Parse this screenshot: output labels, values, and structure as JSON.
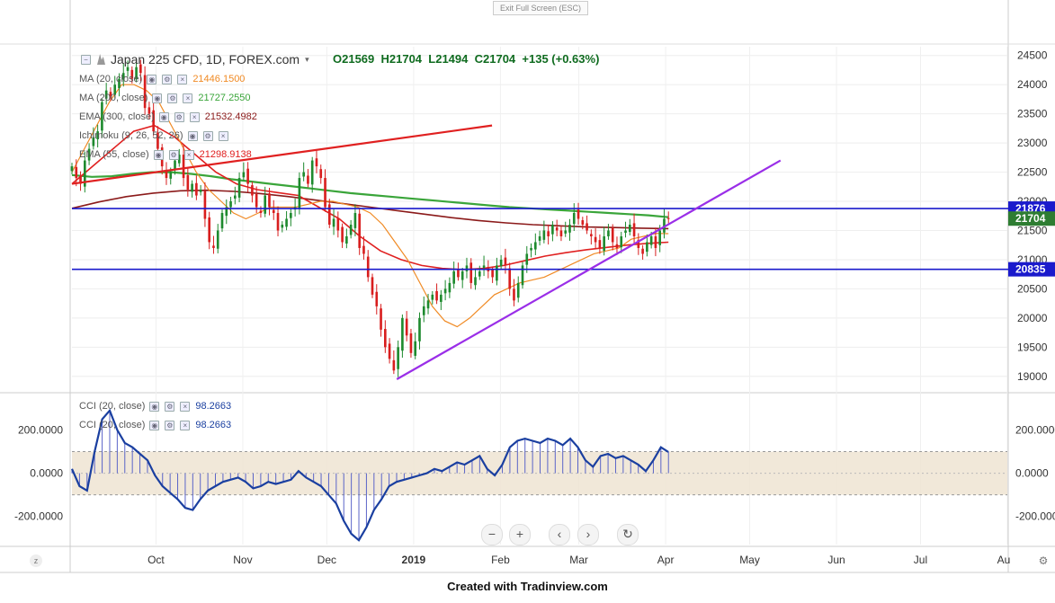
{
  "window": {
    "exit_fullscreen": "Exit Full Screen (ESC)"
  },
  "symbol": {
    "title": "Japan 225 CFD, 1D, FOREX.com"
  },
  "ohlc": {
    "open": "O21569",
    "high": "H21704",
    "low": "L21494",
    "close": "C21704",
    "change": "+135 (+0.63%)"
  },
  "indicators": [
    {
      "label": "MA (20, close)",
      "value": "21446.1500",
      "color": "#f08a24"
    },
    {
      "label": "MA (200, close)",
      "value": "21727.2550",
      "color": "#3aa53a"
    },
    {
      "label": "EMA (300, close)",
      "value": "21532.4982",
      "color": "#8b1a1a"
    },
    {
      "label": "Ichimoku (9, 26, 52, 26)",
      "value": "",
      "color": "#888888"
    },
    {
      "label": "EMA (55, close)",
      "value": "21298.9138",
      "color": "#e02020"
    }
  ],
  "cci_legend": [
    {
      "label": "CCI (20, close)",
      "value": "98.2663"
    },
    {
      "label": "CCI (20, close)",
      "value": "98.2663"
    }
  ],
  "price_axis": [
    "24500",
    "24000",
    "23500",
    "23000",
    "22500",
    "22000",
    "21500",
    "21000",
    "20500",
    "20000",
    "19500",
    "19000"
  ],
  "cci_axis": [
    "200.0000",
    "0.0000",
    "-200.0000"
  ],
  "time_axis": [
    "Oct",
    "Nov",
    "Dec",
    "2019",
    "Feb",
    "Mar",
    "Apr",
    "May",
    "Jun",
    "Jul",
    "Au"
  ],
  "price_markers": [
    {
      "value": "21876",
      "color": "#1a1acc"
    },
    {
      "value": "21704",
      "color": "#2e7d32"
    },
    {
      "value": "20835",
      "color": "#1a1acc"
    }
  ],
  "toolbar": {
    "zoom_out": "−",
    "zoom_in": "+",
    "prev": "‹",
    "next": "›",
    "reset": "↻"
  },
  "footer": {
    "credit": "Created with Tradinview.com"
  },
  "colors": {
    "support_resistance": "#1a1acc",
    "trendline": "#9a2ee8",
    "red_trendline": "#e02020",
    "cci_line": "#1a3fa0",
    "cci_band": "#eee4d2"
  },
  "chart_data": {
    "type": "candlestick",
    "title": "Japan 225 CFD, 1D, FOREX.com",
    "x_range": [
      "2018-09-01",
      "2019-08-01"
    ],
    "ylim": [
      18750,
      24650
    ],
    "cci_ylim": [
      -330,
      360
    ],
    "horizontal_lines": [
      21876,
      20835
    ],
    "trendlines": [
      {
        "name": "rising support",
        "color": "#9a2ee8",
        "from": [
          "2018-12-26",
          18950
        ],
        "to": [
          "2019-05-12",
          22700
        ]
      },
      {
        "name": "upper red line",
        "color": "#e02020",
        "from": [
          "2018-09-01",
          22300
        ],
        "to": [
          "2019-01-29",
          23300
        ]
      }
    ],
    "closes": [
      22600,
      22400,
      22300,
      22700,
      22900,
      23100,
      23200,
      23700,
      23900,
      23800,
      24000,
      24100,
      24200,
      24300,
      24100,
      24300,
      24200,
      23600,
      23500,
      23200,
      22900,
      22600,
      22400,
      22500,
      22700,
      22800,
      22400,
      22200,
      22300,
      22100,
      22200,
      21700,
      21300,
      21200,
      21500,
      21800,
      21900,
      22000,
      22100,
      22400,
      22500,
      22300,
      22100,
      21900,
      21800,
      22100,
      21900,
      21800,
      21500,
      21600,
      21700,
      21800,
      21900,
      22400,
      22500,
      22300,
      22700,
      22600,
      22400,
      21900,
      21600,
      21700,
      21500,
      21300,
      21400,
      21600,
      21800,
      21200,
      21100,
      20700,
      20400,
      20200,
      19800,
      19500,
      19300,
      19100,
      19500,
      20000,
      19700,
      19400,
      19600,
      20000,
      20200,
      20300,
      20400,
      20300,
      20400,
      20500,
      20600,
      20800,
      20700,
      20800,
      20900,
      20600,
      20700,
      20800,
      20900,
      20800,
      20700,
      20900,
      21000,
      20900,
      20500,
      20300,
      20600,
      20900,
      21100,
      21200,
      21300,
      21400,
      21500,
      21400,
      21600,
      21500,
      21400,
      21500,
      21600,
      21800,
      21700,
      21600,
      21500,
      21400,
      21300,
      21200,
      21400,
      21500,
      21300,
      21200,
      21400,
      21500,
      21600,
      21400,
      21200,
      21100,
      21300,
      21400,
      21200,
      21500,
      21700,
      21704
    ],
    "ma20": [
      22500,
      22900,
      23300,
      23700,
      24000,
      24000,
      23900,
      23700,
      23300,
      22900,
      22500,
      22200,
      22000,
      21800,
      21700,
      21800,
      21900,
      21900,
      21900,
      21950,
      22000,
      22000,
      21950,
      21900,
      21800,
      21600,
      21300,
      21000,
      20600,
      20200,
      19950,
      19850,
      20000,
      20200,
      20400,
      20500,
      20600,
      20650,
      20700,
      20800,
      20900,
      21000,
      21100,
      21150,
      21200,
      21350,
      21400,
      21450,
      21446
    ],
    "ma200": [
      22450,
      22420,
      22430,
      22470,
      22500,
      22500,
      22470,
      22430,
      22380,
      22340,
      22300,
      22260,
      22220,
      22180,
      22140,
      22110,
      22080,
      22050,
      22020,
      21990,
      21960,
      21930,
      21900,
      21880,
      21860,
      21840,
      21820,
      21800,
      21780,
      21760,
      21727
    ],
    "ema300": [
      21880,
      21990,
      22080,
      22140,
      22180,
      22190,
      22170,
      22130,
      22080,
      22020,
      21960,
      21900,
      21840,
      21780,
      21720,
      21670,
      21630,
      21600,
      21580,
      21560,
      21550,
      21540,
      21532
    ],
    "ema55": [
      22300,
      22600,
      22900,
      23200,
      23300,
      23100,
      22800,
      22500,
      22300,
      22200,
      22150,
      22100,
      21900,
      21700,
      21400,
      21150,
      21000,
      20900,
      20850,
      20830,
      20850,
      20900,
      20980,
      21060,
      21120,
      21170,
      21210,
      21250,
      21280,
      21299
    ],
    "cci": [
      20,
      -60,
      -80,
      100,
      250,
      290,
      200,
      140,
      120,
      90,
      60,
      -10,
      -60,
      -90,
      -120,
      -160,
      -170,
      -120,
      -80,
      -60,
      -40,
      -30,
      -20,
      -40,
      -70,
      -60,
      -40,
      -50,
      -40,
      -30,
      10,
      -20,
      -40,
      -60,
      -100,
      -140,
      -220,
      -280,
      -310,
      -250,
      -170,
      -120,
      -60,
      -40,
      -30,
      -20,
      -10,
      0,
      20,
      10,
      30,
      50,
      40,
      60,
      80,
      20,
      -10,
      40,
      120,
      150,
      160,
      150,
      140,
      160,
      150,
      130,
      160,
      120,
      60,
      30,
      80,
      90,
      70,
      80,
      60,
      40,
      10,
      60,
      120,
      98
    ]
  }
}
